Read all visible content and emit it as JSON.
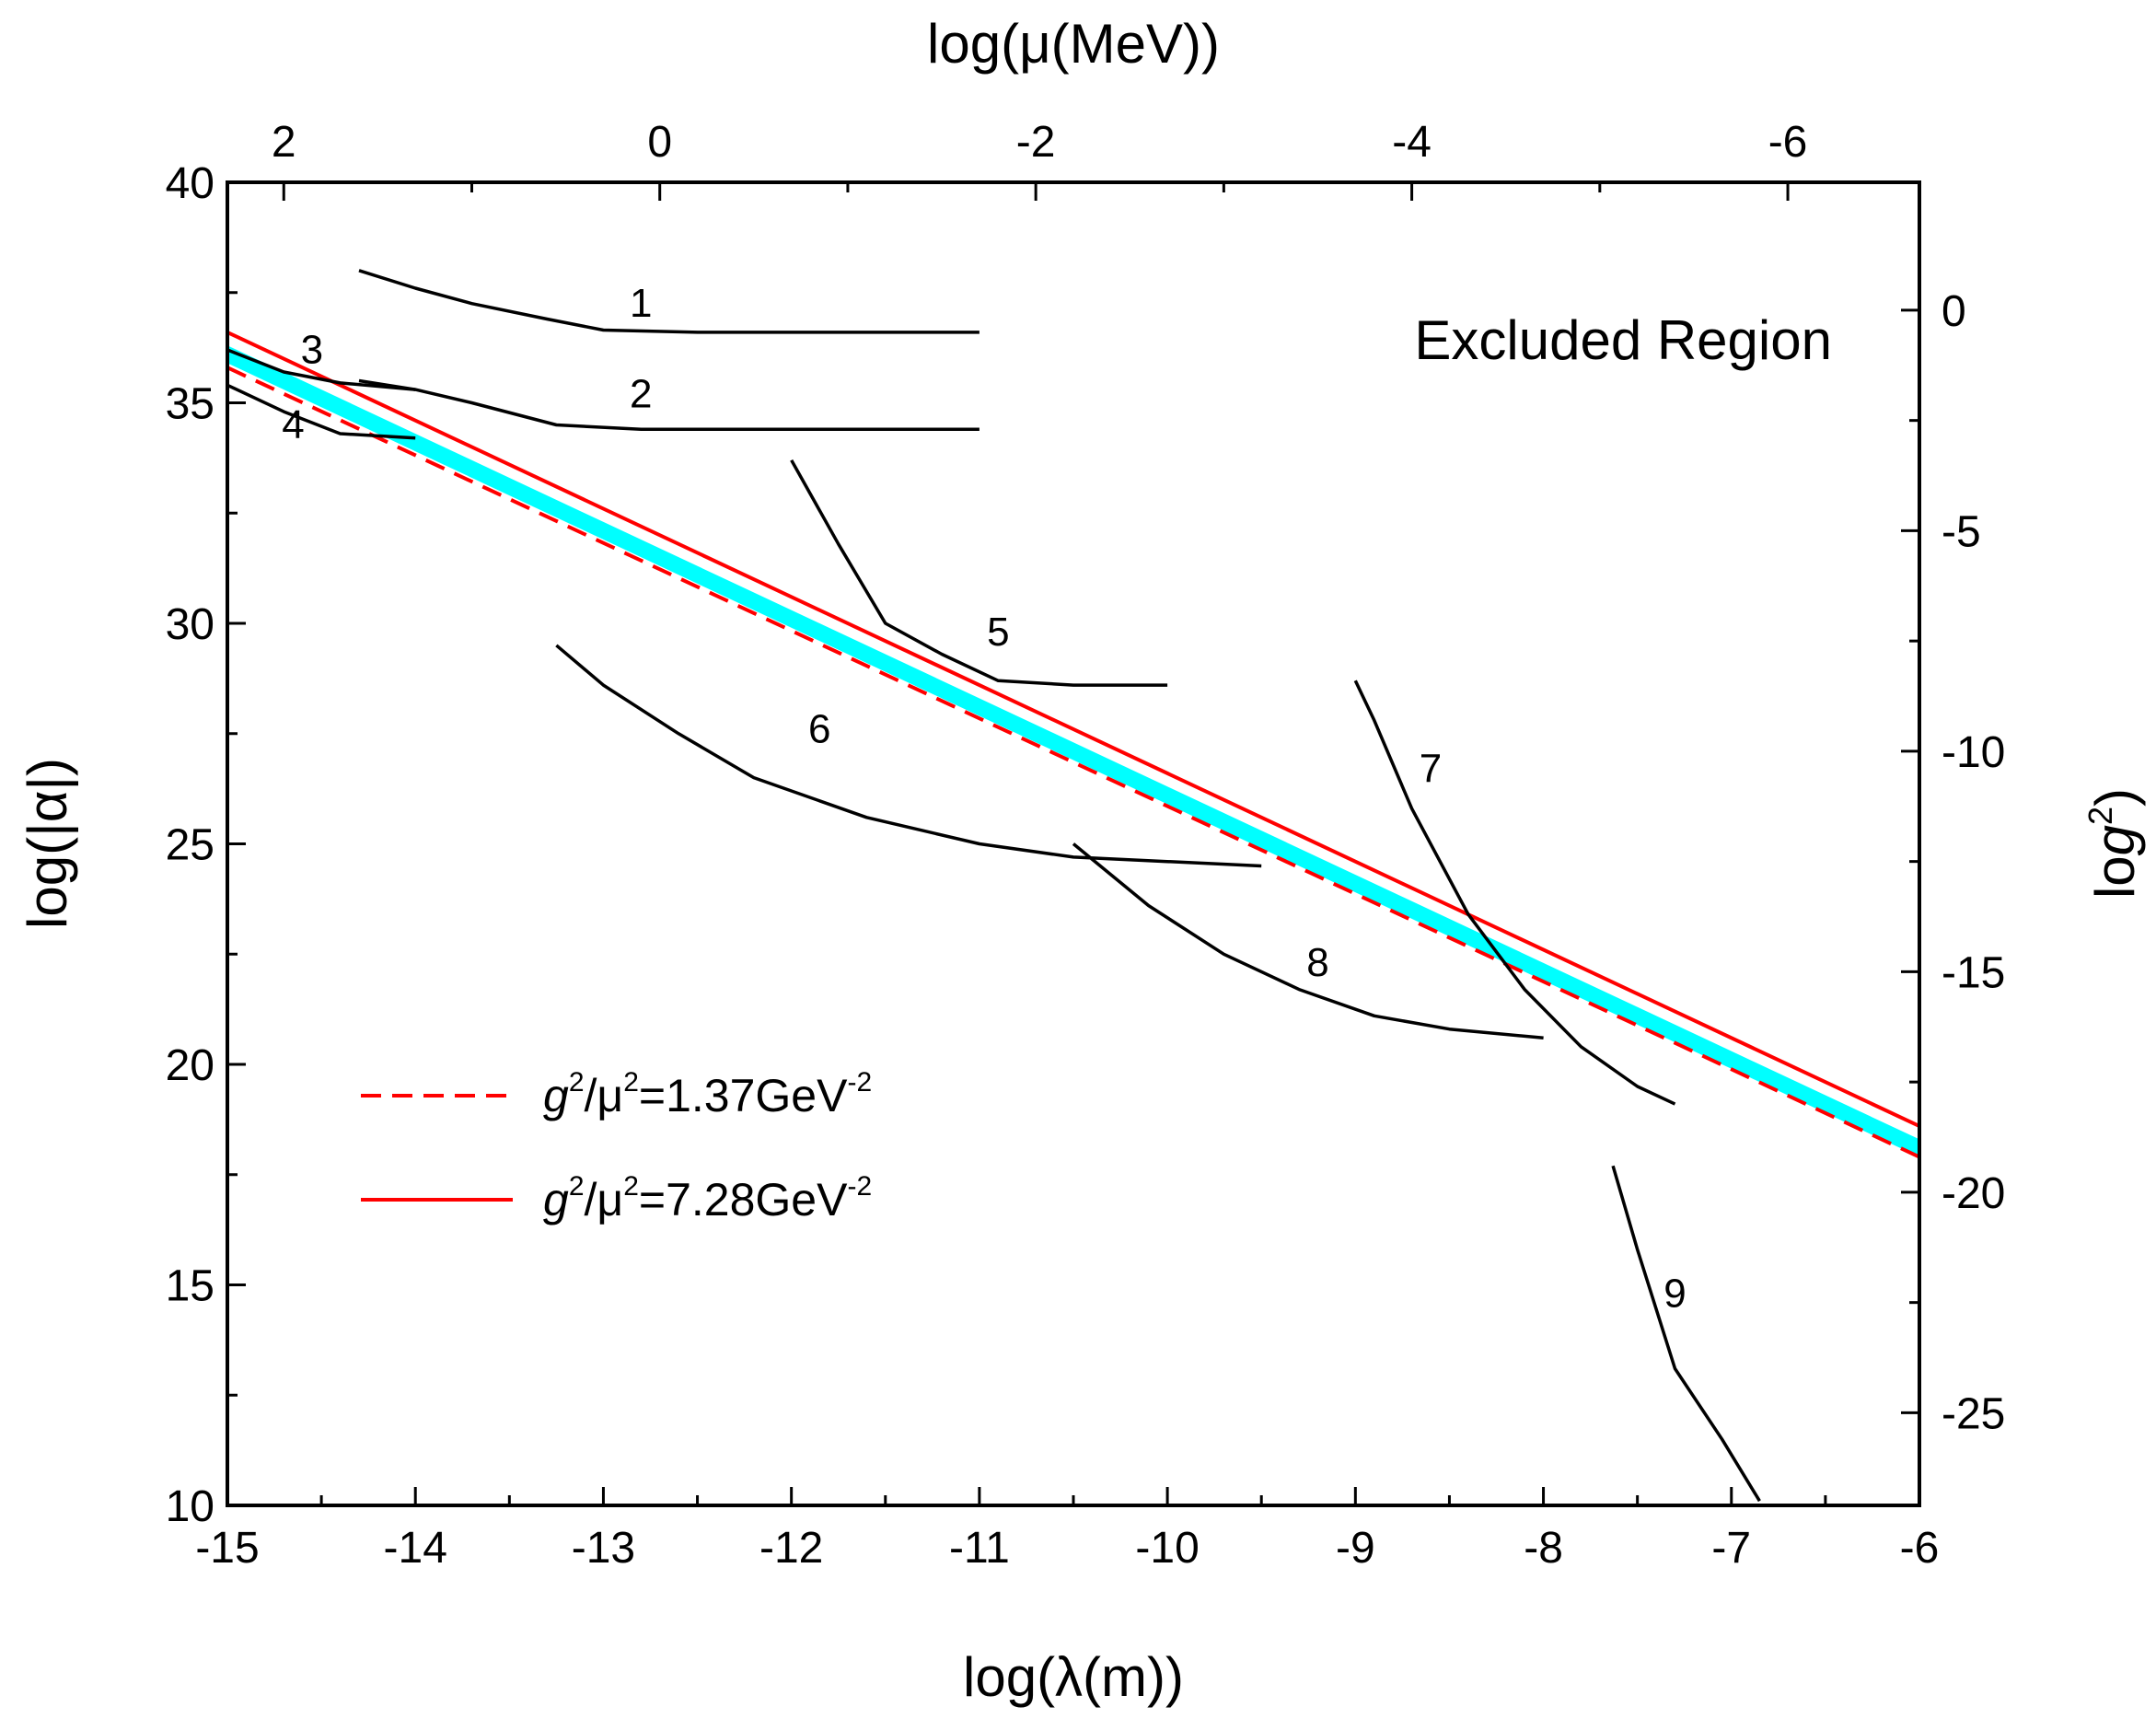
{
  "chart_data": {
    "type": "line",
    "title": "",
    "xlabel": "log(λ(m))",
    "ylabel": "log(|α|)",
    "x2label": "log(μ(MeV))",
    "y2label": "log(g²)",
    "xlim": [
      -15,
      -6
    ],
    "ylim": [
      10,
      40
    ],
    "x_ticks": [
      -15,
      -14,
      -13,
      -12,
      -11,
      -10,
      -9,
      -8,
      -7,
      -6
    ],
    "y_ticks": [
      10,
      15,
      20,
      25,
      30,
      35,
      40
    ],
    "top_ticks": [
      {
        "label": "2",
        "x": -14.7
      },
      {
        "label": "0",
        "x": -12.7
      },
      {
        "label": "-2",
        "x": -10.7
      },
      {
        "label": "-4",
        "x": -8.7
      },
      {
        "label": "-6",
        "x": -6.7
      }
    ],
    "right_ticks": [
      {
        "label": "0",
        "y": 37.1
      },
      {
        "label": "-5",
        "y": 32.1
      },
      {
        "label": "-10",
        "y": 27.1
      },
      {
        "label": "-15",
        "y": 22.1
      },
      {
        "label": "-20",
        "y": 17.1
      },
      {
        "label": "-25",
        "y": 12.1
      }
    ],
    "region_label": "Excluded Region",
    "band": {
      "color": "#00ffff",
      "upper": [
        [
          -15,
          36.3
        ],
        [
          -6,
          18.3
        ]
      ],
      "lower": [
        [
          -15,
          35.9
        ],
        [
          -6,
          17.9
        ]
      ]
    },
    "legend": [
      {
        "prefix": "g",
        "sup1": "2",
        "mid": "/μ",
        "sup2": "2",
        "suffix": "=1.37GeV",
        "sup3": "-2",
        "style": "dashed",
        "color": "#ff0000"
      },
      {
        "prefix": "g",
        "sup1": "2",
        "mid": "/μ",
        "sup2": "2",
        "suffix": "=7.28GeV",
        "sup3": "-2",
        "style": "solid",
        "color": "#ff0000"
      }
    ],
    "series": [
      {
        "name": "g2/mu2=7.28GeV-2",
        "color": "#ff0000",
        "style": "solid",
        "points": [
          [
            -15,
            36.6
          ],
          [
            -6,
            18.6
          ]
        ]
      },
      {
        "name": "g2/mu2=1.37GeV-2",
        "color": "#ff0000",
        "style": "dashed",
        "points": [
          [
            -15,
            35.8
          ],
          [
            -6,
            17.9
          ]
        ]
      },
      {
        "name": "1",
        "color": "#000000",
        "style": "solid",
        "points": [
          [
            -14.3,
            38.0
          ],
          [
            -14.0,
            37.6
          ],
          [
            -13.7,
            37.25
          ],
          [
            -13.3,
            36.9
          ],
          [
            -13.0,
            36.65
          ],
          [
            -12.5,
            36.6
          ],
          [
            -11.0,
            36.6
          ]
        ]
      },
      {
        "name": "2",
        "color": "#000000",
        "style": "solid",
        "points": [
          [
            -14.3,
            35.5
          ],
          [
            -14.0,
            35.3
          ],
          [
            -13.7,
            35.0
          ],
          [
            -13.25,
            34.5
          ],
          [
            -12.8,
            34.4
          ],
          [
            -11.0,
            34.4
          ]
        ]
      },
      {
        "name": "3",
        "color": "#000000",
        "style": "solid",
        "points": [
          [
            -15,
            36.2
          ],
          [
            -14.7,
            35.7
          ],
          [
            -14.4,
            35.45
          ],
          [
            -14.0,
            35.3
          ]
        ]
      },
      {
        "name": "4",
        "color": "#000000",
        "style": "solid",
        "points": [
          [
            -15,
            35.4
          ],
          [
            -14.7,
            34.8
          ],
          [
            -14.4,
            34.3
          ],
          [
            -14.0,
            34.2
          ]
        ]
      },
      {
        "name": "5",
        "color": "#000000",
        "style": "solid",
        "points": [
          [
            -12.0,
            33.7
          ],
          [
            -11.75,
            31.8
          ],
          [
            -11.5,
            30.0
          ],
          [
            -11.2,
            29.3
          ],
          [
            -10.9,
            28.7
          ],
          [
            -10.5,
            28.6
          ],
          [
            -10.0,
            28.6
          ]
        ]
      },
      {
        "name": "6",
        "color": "#000000",
        "style": "solid",
        "points": [
          [
            -13.25,
            29.5
          ],
          [
            -13.0,
            28.6
          ],
          [
            -12.6,
            27.5
          ],
          [
            -12.2,
            26.5
          ],
          [
            -11.6,
            25.6
          ],
          [
            -11.0,
            25.0
          ],
          [
            -10.5,
            24.7
          ],
          [
            -10.0,
            24.6
          ],
          [
            -9.5,
            24.5
          ]
        ]
      },
      {
        "name": "7",
        "color": "#000000",
        "style": "solid",
        "points": [
          [
            -9.0,
            28.7
          ],
          [
            -8.9,
            27.8
          ],
          [
            -8.7,
            25.8
          ],
          [
            -8.4,
            23.4
          ],
          [
            -8.1,
            21.7
          ],
          [
            -7.8,
            20.4
          ],
          [
            -7.5,
            19.5
          ],
          [
            -7.3,
            19.1
          ]
        ]
      },
      {
        "name": "8",
        "color": "#000000",
        "style": "solid",
        "points": [
          [
            -10.5,
            25.0
          ],
          [
            -10.1,
            23.6
          ],
          [
            -9.7,
            22.5
          ],
          [
            -9.3,
            21.7
          ],
          [
            -8.9,
            21.1
          ],
          [
            -8.5,
            20.8
          ],
          [
            -8.0,
            20.6
          ]
        ]
      },
      {
        "name": "9",
        "color": "#000000",
        "style": "solid",
        "points": [
          [
            -7.63,
            17.7
          ],
          [
            -7.5,
            15.8
          ],
          [
            -7.3,
            13.1
          ],
          [
            -7.05,
            11.5
          ],
          [
            -6.85,
            10.1
          ]
        ]
      }
    ],
    "curve_labels": [
      {
        "text": "1",
        "x": -12.8,
        "y": 36.95
      },
      {
        "text": "2",
        "x": -12.8,
        "y": 34.9
      },
      {
        "text": "3",
        "x": -14.55,
        "y": 35.9
      },
      {
        "text": "4",
        "x": -14.65,
        "y": 34.2
      },
      {
        "text": "5",
        "x": -10.9,
        "y": 29.5
      },
      {
        "text": "6",
        "x": -11.85,
        "y": 27.3
      },
      {
        "text": "7",
        "x": -8.6,
        "y": 26.4
      },
      {
        "text": "8",
        "x": -9.2,
        "y": 22.0
      },
      {
        "text": "9",
        "x": -7.3,
        "y": 14.5
      }
    ]
  }
}
